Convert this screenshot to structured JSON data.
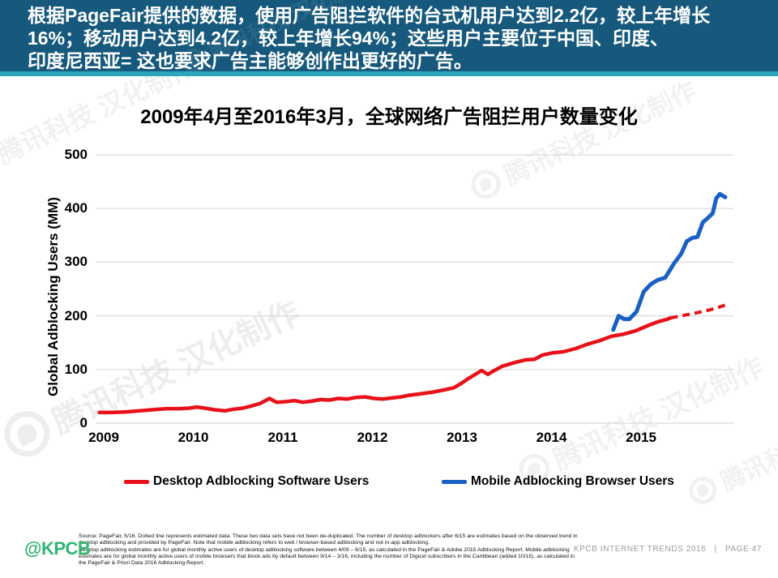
{
  "header": {
    "lines": [
      "根据PageFair提供的数据，使用广告阻拦软件的台式机用户达到2.2亿，较上年增长",
      "16%；移动用户达到4.2亿，较上年增长94%；这些用户主要位于中国、印度、",
      "印度尼西亚= 这也要求广告主能够创作出更好的广告。"
    ]
  },
  "watermark": {
    "text": "腾讯科技 汉化制作"
  },
  "chart_data": {
    "type": "line",
    "title": "2009年4月至2016年3月，全球网络广告阻拦用户数量变化",
    "xlabel": "",
    "ylabel": "Global Adblocking Users (MM)",
    "ylim": [
      0,
      500
    ],
    "y_ticks": [
      0,
      100,
      200,
      300,
      400,
      500
    ],
    "x_ticks": [
      {
        "label": "2009",
        "t": 2009.25
      },
      {
        "label": "2010",
        "t": 2010.25
      },
      {
        "label": "2011",
        "t": 2011.25
      },
      {
        "label": "2012",
        "t": 2012.25
      },
      {
        "label": "2013",
        "t": 2013.25
      },
      {
        "label": "2014",
        "t": 2014.25
      },
      {
        "label": "2015",
        "t": 2015.25
      }
    ],
    "x_range": [
      2009.2,
      2016.2
    ],
    "grid": true,
    "grid_color": "#d9d9d9",
    "legend_position": "bottom",
    "series": [
      {
        "name": "Desktop Adblocking Software Users",
        "color": "#e8111a",
        "style": "solid",
        "stroke_width": 4.5,
        "points": [
          [
            2009.2,
            20
          ],
          [
            2009.35,
            20
          ],
          [
            2009.5,
            21
          ],
          [
            2009.65,
            23
          ],
          [
            2009.8,
            25
          ],
          [
            2009.95,
            27
          ],
          [
            2010.1,
            27
          ],
          [
            2010.2,
            28
          ],
          [
            2010.29,
            30
          ],
          [
            2010.38,
            28
          ],
          [
            2010.48,
            25
          ],
          [
            2010.6,
            23
          ],
          [
            2010.7,
            26
          ],
          [
            2010.8,
            28
          ],
          [
            2010.9,
            32
          ],
          [
            2011.0,
            37
          ],
          [
            2011.1,
            46
          ],
          [
            2011.18,
            39
          ],
          [
            2011.28,
            40
          ],
          [
            2011.38,
            42
          ],
          [
            2011.47,
            39
          ],
          [
            2011.57,
            41
          ],
          [
            2011.67,
            44
          ],
          [
            2011.77,
            43
          ],
          [
            2011.87,
            46
          ],
          [
            2011.97,
            45
          ],
          [
            2012.07,
            48
          ],
          [
            2012.17,
            49
          ],
          [
            2012.27,
            46
          ],
          [
            2012.37,
            45
          ],
          [
            2012.47,
            47
          ],
          [
            2012.57,
            49
          ],
          [
            2012.66,
            52
          ],
          [
            2012.8,
            55
          ],
          [
            2012.93,
            58
          ],
          [
            2013.05,
            62
          ],
          [
            2013.16,
            66
          ],
          [
            2013.25,
            75
          ],
          [
            2013.32,
            83
          ],
          [
            2013.39,
            90
          ],
          [
            2013.47,
            98
          ],
          [
            2013.54,
            91
          ],
          [
            2013.61,
            98
          ],
          [
            2013.7,
            106
          ],
          [
            2013.84,
            113
          ],
          [
            2013.96,
            118
          ],
          [
            2014.06,
            119
          ],
          [
            2014.15,
            127
          ],
          [
            2014.26,
            131
          ],
          [
            2014.38,
            133
          ],
          [
            2014.52,
            139
          ],
          [
            2014.65,
            147
          ],
          [
            2014.79,
            154
          ],
          [
            2014.92,
            162
          ],
          [
            2015.06,
            166
          ],
          [
            2015.19,
            172
          ],
          [
            2015.33,
            182
          ],
          [
            2015.44,
            189
          ],
          [
            2015.53,
            193
          ],
          [
            2015.58,
            196
          ]
        ]
      },
      {
        "name": "Desktop Adblocking Software Users (estimated, dotted)",
        "color": "#e8111a",
        "style": "dashed",
        "stroke_width": 4,
        "points": [
          [
            2015.58,
            196
          ],
          [
            2015.7,
            200
          ],
          [
            2015.82,
            204
          ],
          [
            2015.94,
            208
          ],
          [
            2016.06,
            213
          ],
          [
            2016.19,
            220
          ]
        ]
      },
      {
        "name": "Mobile Adblocking Browser Users",
        "color": "#1a5fc4",
        "style": "solid",
        "stroke_width": 5,
        "points": [
          [
            2014.94,
            174
          ],
          [
            2015.0,
            200
          ],
          [
            2015.06,
            194
          ],
          [
            2015.12,
            194
          ],
          [
            2015.2,
            208
          ],
          [
            2015.28,
            245
          ],
          [
            2015.36,
            259
          ],
          [
            2015.44,
            267
          ],
          [
            2015.52,
            271
          ],
          [
            2015.62,
            298
          ],
          [
            2015.7,
            316
          ],
          [
            2015.76,
            339
          ],
          [
            2015.82,
            345
          ],
          [
            2015.88,
            347
          ],
          [
            2015.94,
            374
          ],
          [
            2016.0,
            383
          ],
          [
            2016.05,
            391
          ],
          [
            2016.09,
            419
          ],
          [
            2016.13,
            427
          ],
          [
            2016.19,
            421
          ]
        ]
      }
    ],
    "legend": [
      {
        "label": "Desktop Adblocking Software Users",
        "color": "#e8111a"
      },
      {
        "label": "Mobile Adblocking Browser Users",
        "color": "#1a5fc4"
      }
    ]
  },
  "footer": {
    "source_lines": [
      "Source: PageFair, 5/16. Dotted line represents estimated data. These two data sets have not been de-duplicated. The number of desktop adblockers after 6/15 are estimates based on the observed trend in",
      "desktop adblocking and provided by PageFair. Note that mobile adblocking refers to web / browser-based adblocking and not in-app adblocking.",
      "Desktop adblocking estimates are for global monthly active users of desktop adblocking software between 4/09 – 6/15, as calculated in the PageFair & Adobe 2015 Adblocking Report. Mobile adblocking",
      "estimates are for global monthly active users of mobile browsers that block ads by default between 9/14 – 3/16, including the number of Digicel subscribers in the Caribbean (added 10/15), as calculated in",
      "the PageFair & Priori Data 2016 Adblocking Report."
    ],
    "logo": "@KPCB",
    "page_label": "KPCB INTERNET TRENDS 2016   |   PAGE 47"
  }
}
